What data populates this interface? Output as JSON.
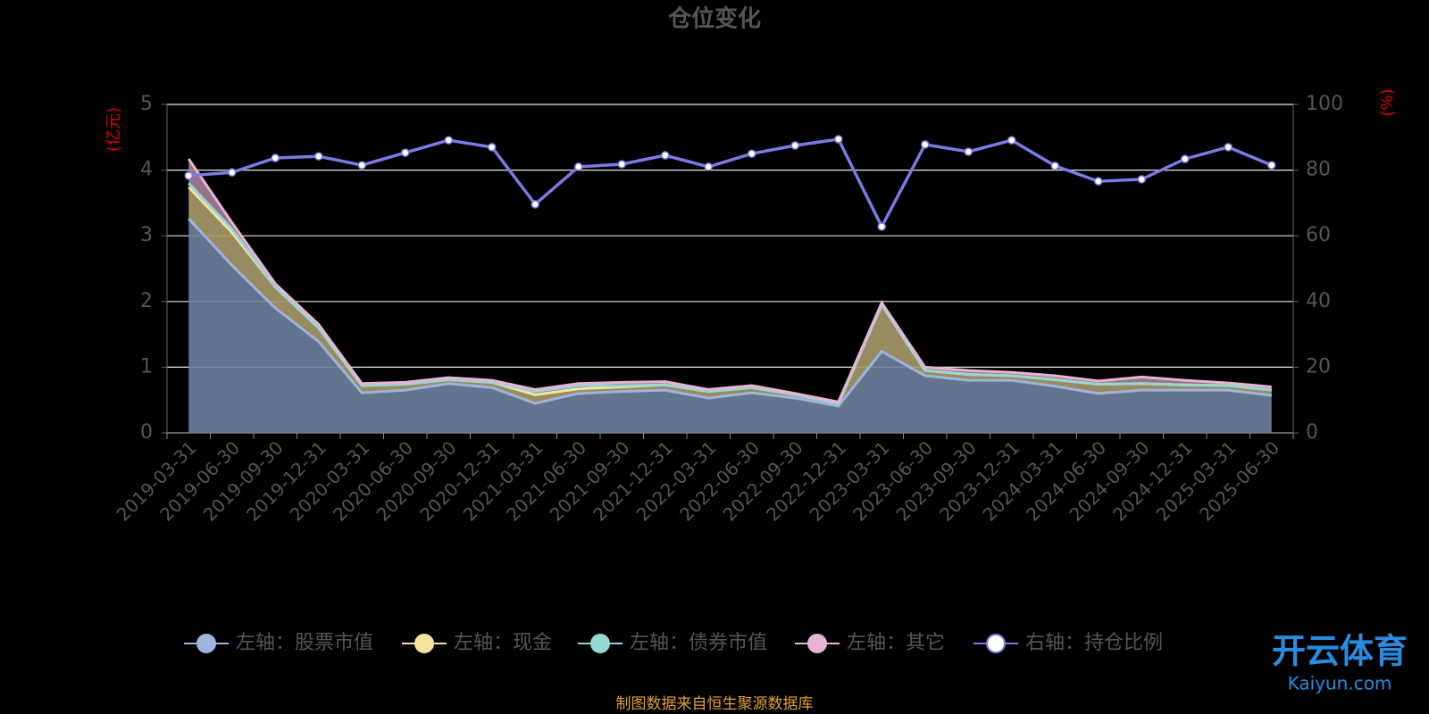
{
  "chart_data": {
    "type": "area",
    "title": "仓位变化",
    "ylabel": "(亿元)",
    "y2label": "(%)",
    "source": "制图数据来自恒生聚源数据库",
    "watermark": {
      "name": "开云体育",
      "url": "Kaiyun.com"
    },
    "categories": [
      "2019-03-31",
      "2019-06-30",
      "2019-09-30",
      "2019-12-31",
      "2020-03-31",
      "2020-06-30",
      "2020-09-30",
      "2020-12-31",
      "2021-03-31",
      "2021-06-30",
      "2021-09-30",
      "2021-12-31",
      "2022-03-31",
      "2022-06-30",
      "2022-09-30",
      "2022-12-31",
      "2023-03-31",
      "2023-06-30",
      "2023-09-30",
      "2023-12-31",
      "2024-03-31",
      "2024-06-30",
      "2024-09-30",
      "2024-12-31",
      "2025-03-31",
      "2025-06-30"
    ],
    "series": [
      {
        "name": "左轴：股票市值",
        "color": "#9db4dc",
        "fill": "#6f819e",
        "axis": "y",
        "type": "area",
        "values": [
          3.26,
          2.55,
          1.9,
          1.39,
          0.61,
          0.65,
          0.75,
          0.69,
          0.45,
          0.6,
          0.63,
          0.65,
          0.53,
          0.61,
          0.53,
          0.41,
          1.24,
          0.87,
          0.8,
          0.8,
          0.71,
          0.6,
          0.65,
          0.65,
          0.65,
          0.57
        ]
      },
      {
        "name": "左轴：现金",
        "color": "#f8e3a1",
        "fill": "#a89a6a",
        "axis": "y",
        "type": "area",
        "values": [
          0.48,
          0.5,
          0.32,
          0.21,
          0.11,
          0.09,
          0.06,
          0.08,
          0.13,
          0.07,
          0.07,
          0.08,
          0.1,
          0.08,
          0.05,
          0.04,
          0.71,
          0.08,
          0.09,
          0.07,
          0.1,
          0.14,
          0.1,
          0.08,
          0.07,
          0.08
        ]
      },
      {
        "name": "左轴：债券市值",
        "color": "#95d7d3",
        "fill": "#6a9c99",
        "axis": "y",
        "type": "area",
        "values": [
          0.06,
          0.05,
          0,
          0,
          0,
          0,
          0,
          0,
          0.05,
          0.05,
          0.02,
          0,
          0,
          0,
          0,
          0,
          0,
          0,
          0,
          0,
          0,
          0,
          0,
          0,
          0,
          0
        ]
      },
      {
        "name": "左轴：其它",
        "color": "#e8b3d5",
        "fill": "#a7809a",
        "axis": "y",
        "type": "area",
        "values": [
          0.37,
          0.1,
          0.05,
          0.05,
          0.03,
          0.03,
          0.03,
          0.03,
          0.03,
          0.03,
          0.05,
          0.05,
          0.03,
          0.03,
          0.02,
          0.02,
          0.03,
          0.05,
          0.06,
          0.05,
          0.06,
          0.05,
          0.1,
          0.07,
          0.04,
          0.05
        ]
      },
      {
        "name": "右轴：持仓比例",
        "color": "#7b7be6",
        "axis": "y2",
        "type": "line",
        "values": [
          78.3,
          79.3,
          83.7,
          84.2,
          81.5,
          85.3,
          89.1,
          87,
          69.6,
          81,
          81.8,
          84.5,
          81,
          85,
          87.5,
          89.4,
          62.8,
          87.8,
          85.6,
          89.1,
          81.3,
          76.6,
          77.2,
          83.4,
          87,
          81.5
        ]
      }
    ],
    "ylim": [
      0,
      5
    ],
    "yticks": [
      0,
      1,
      2,
      3,
      4,
      5
    ],
    "y2lim": [
      0,
      100
    ],
    "y2ticks": [
      0,
      20,
      40,
      60,
      80,
      100
    ],
    "grid": true
  }
}
